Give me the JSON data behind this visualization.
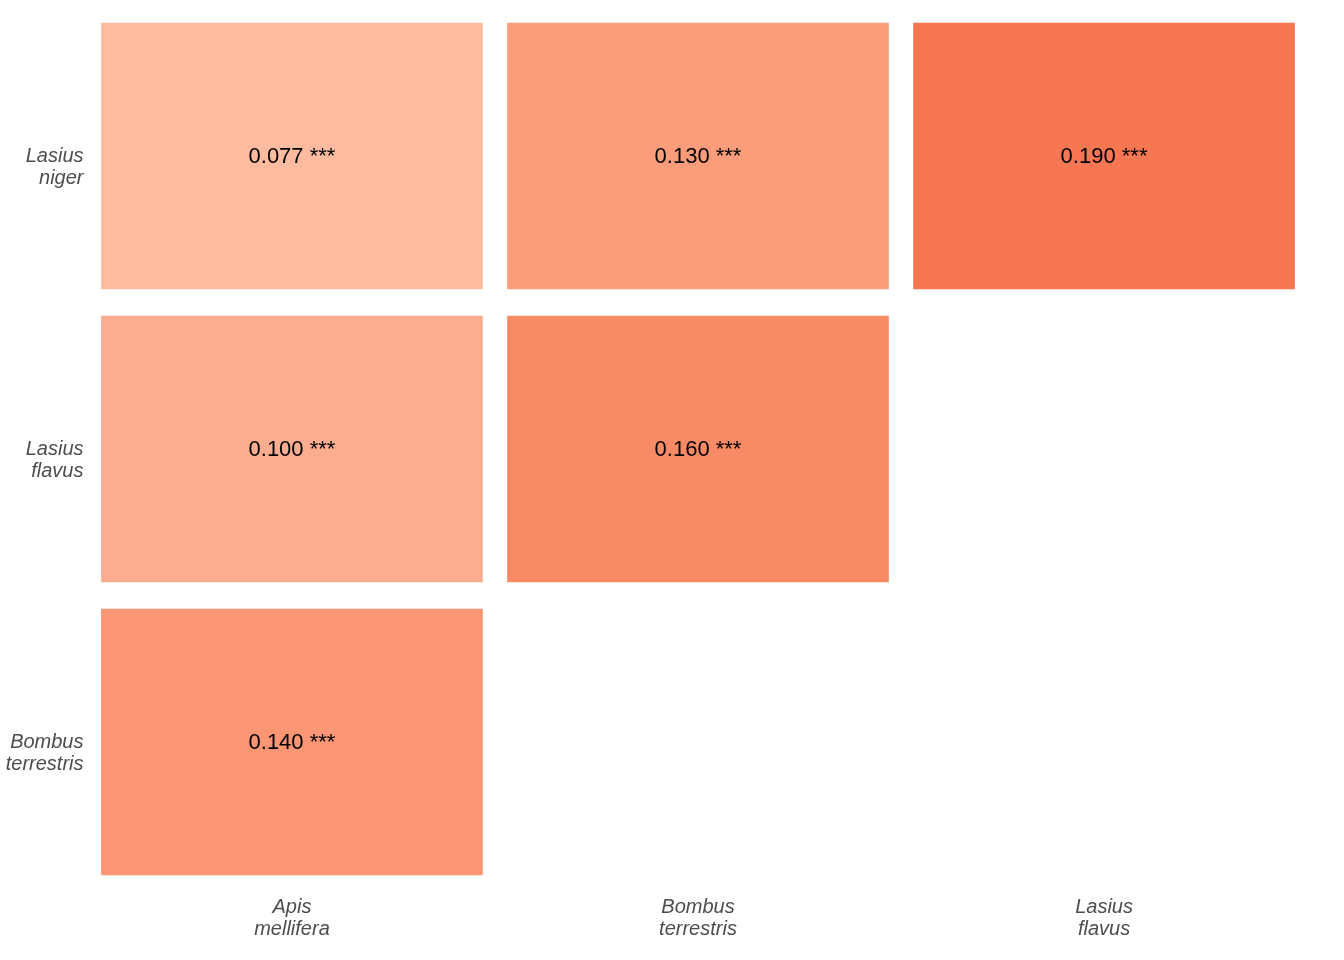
{
  "chart_data": {
    "type": "heatmap",
    "categories": [
      "Apis mellifera",
      "Bombus terrestris",
      "Lasius flavus"
    ],
    "y_categories": [
      "Lasius niger",
      "Lasius flavus",
      "Bombus terrestris"
    ],
    "cells": [
      [
        0.077,
        0.13,
        0.19
      ],
      [
        0.1,
        0.16,
        null
      ],
      [
        0.14,
        null,
        null
      ]
    ],
    "cell_labels": [
      [
        "0.077 ***",
        "0.130 ***",
        "0.190 ***"
      ],
      [
        "0.100 ***",
        "0.160 ***",
        null
      ],
      [
        "0.140 ***",
        null,
        null
      ]
    ]
  }
}
